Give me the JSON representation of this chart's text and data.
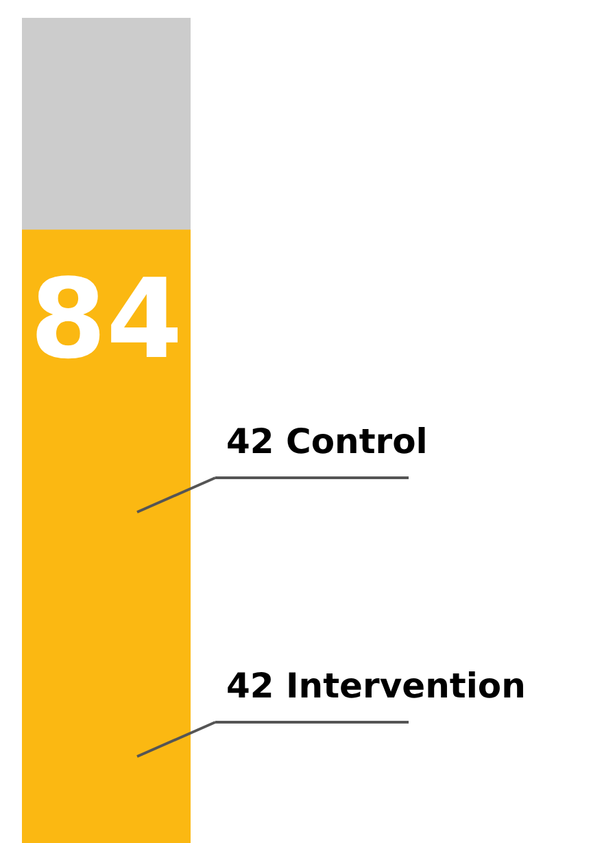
{
  "chart_data": {
    "type": "bar",
    "categories": [
      null
    ],
    "ylim": [
      0,
      113
    ],
    "series": [
      {
        "color": "#fbb812",
        "values": [
          84
        ]
      }
    ],
    "data_labels": true,
    "annotations": [
      "42 Control",
      "42 Intervention"
    ]
  }
}
